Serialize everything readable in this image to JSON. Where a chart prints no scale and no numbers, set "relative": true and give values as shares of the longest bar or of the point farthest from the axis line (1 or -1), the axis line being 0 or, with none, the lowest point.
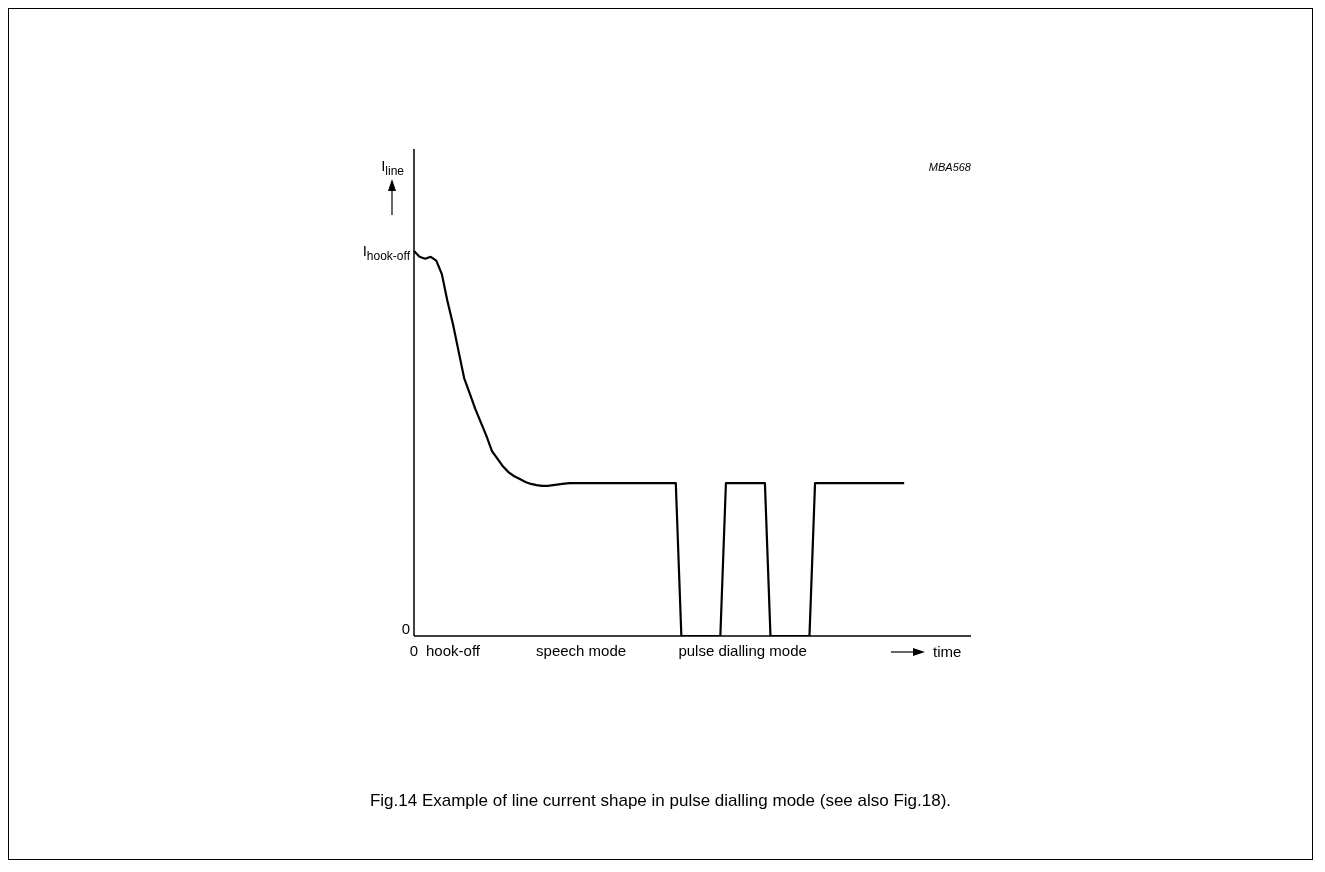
{
  "chart_data": {
    "type": "line",
    "relative": true,
    "title": "Fig.14  Example of line current shape in pulse dialling mode (see also Fig.18).",
    "xlabel": "time",
    "ylabel": "I$_{line}$",
    "annotations": [
      "MBA568",
      "0",
      "I$_{hook-off}$"
    ],
    "categories": [
      "0",
      null,
      null,
      null,
      null,
      null,
      null,
      "hook-off",
      null,
      null,
      null,
      null,
      null,
      null,
      null,
      null,
      null,
      null,
      null,
      null,
      null,
      null,
      null,
      null,
      null,
      null,
      null,
      null,
      null,
      null,
      "speech mode",
      null,
      null,
      null,
      null,
      null,
      null,
      null,
      null,
      null,
      null,
      null,
      null,
      null,
      null,
      null,
      null,
      null,
      null,
      null,
      null,
      null,
      null,
      null,
      null,
      null,
      null,
      null,
      null,
      "pulse dialling mode",
      null,
      null,
      null,
      null,
      null,
      null,
      null,
      null,
      null,
      null,
      null,
      null,
      null,
      null,
      null,
      null,
      null,
      null,
      null,
      null,
      null,
      null,
      null,
      null,
      null,
      null,
      null,
      null,
      null,
      null,
      null,
      null,
      null,
      null,
      null,
      null,
      null,
      null,
      null,
      null,
      null
    ],
    "grid": false,
    "legend": false,
    "marker": "none",
    "line_style": "solid",
    "series": [
      {
        "color": "#000000",
        "values": [
          1,
          0.985,
          0.98,
          0.985,
          0.975,
          0.94,
          0.87,
          0.81,
          0.74,
          0.67,
          0.63,
          0.59,
          0.555,
          0.52,
          0.48,
          0.46,
          0.44,
          0.425,
          0.415,
          0.408,
          0.4,
          0.395,
          0.392,
          0.39,
          0.39,
          0.392,
          0.394,
          0.396,
          0.397,
          0.397,
          0.397,
          0.397,
          0.397,
          0.397,
          0.397,
          0.397,
          0.397,
          0.397,
          0.397,
          0.397,
          0.397,
          0.397,
          0.397,
          0.397,
          0.397,
          0.397,
          0.397,
          0.397,
          0,
          0,
          0,
          0,
          0,
          0,
          0,
          0,
          0.397,
          0.397,
          0.397,
          0.397,
          0.397,
          0.397,
          0.397,
          0.397,
          0,
          0,
          0,
          0,
          0,
          0,
          0,
          0,
          0.397,
          0.397,
          0.397,
          0.397,
          0.397,
          0.397,
          0.397,
          0.397,
          0.397,
          0.397,
          0.397,
          0.397,
          0.397,
          0.397,
          0.397,
          0.397,
          0.397,
          null,
          null,
          null,
          null,
          null,
          null,
          null,
          null,
          null,
          null,
          null,
          null
        ]
      }
    ]
  }
}
